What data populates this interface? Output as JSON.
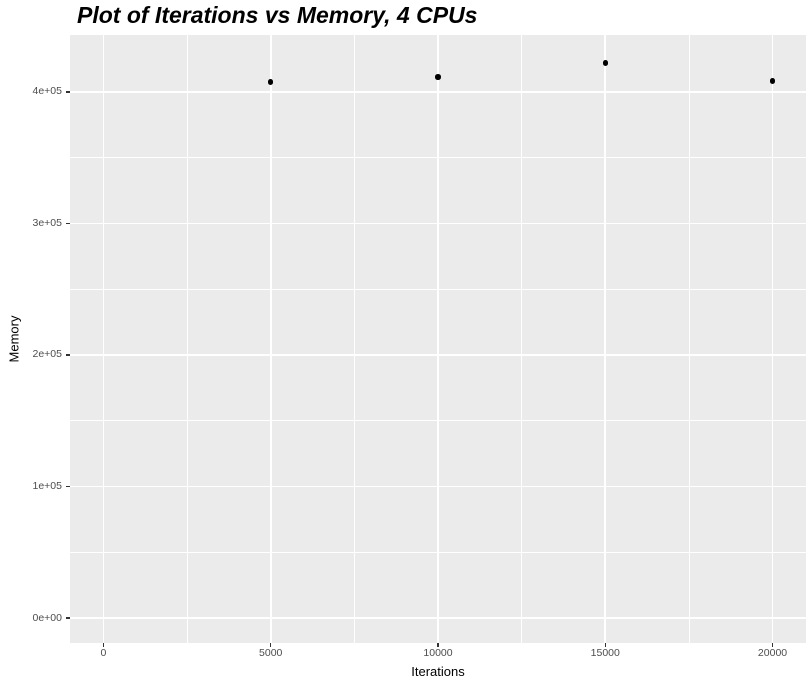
{
  "chart_data": {
    "type": "scatter",
    "title": "Plot of Iterations vs Memory, 4 CPUs",
    "xlabel": "Iterations",
    "ylabel": "Memory",
    "points": [
      {
        "x": 5000,
        "y": 407600
      },
      {
        "x": 10000,
        "y": 411400
      },
      {
        "x": 15000,
        "y": 422000
      },
      {
        "x": 20000,
        "y": 408400
      }
    ],
    "x_ticks": [
      {
        "value": 0,
        "label": "0"
      },
      {
        "value": 5000,
        "label": "5000"
      },
      {
        "value": 10000,
        "label": "10000"
      },
      {
        "value": 15000,
        "label": "15000"
      },
      {
        "value": 20000,
        "label": "20000"
      }
    ],
    "y_ticks": [
      {
        "value": 0,
        "label": "0e+00"
      },
      {
        "value": 100000,
        "label": "1e+05"
      },
      {
        "value": 200000,
        "label": "2e+05"
      },
      {
        "value": 300000,
        "label": "3e+05"
      },
      {
        "value": 400000,
        "label": "4e+05"
      }
    ],
    "x_minor_gridlines": [
      2500,
      7500,
      12500,
      17500
    ],
    "y_minor_gridlines": [
      50000,
      150000,
      250000,
      350000
    ],
    "xlim": [
      -1000,
      21000
    ],
    "ylim": [
      -19000,
      443300
    ],
    "grid": true,
    "legend": "none",
    "colors": {
      "figure_background": "#FFFFFF",
      "panel_background": "#EBEBEB",
      "gridline": "#FFFFFF",
      "point": "#000000",
      "tick_mark": "#333333",
      "tick_label": "#4D4D4D",
      "axis_title": "#000000",
      "title": "#000000"
    }
  }
}
